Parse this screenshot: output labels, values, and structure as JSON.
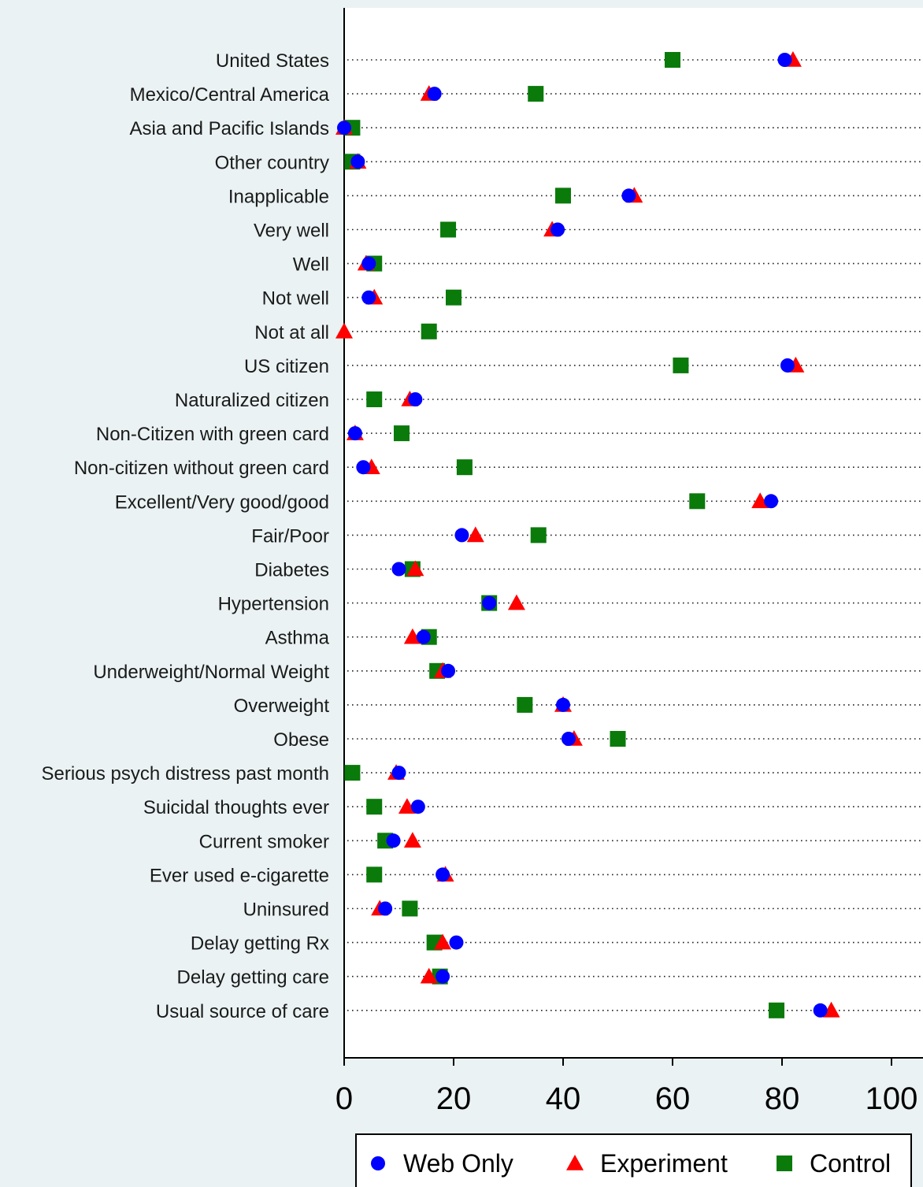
{
  "chart_data": {
    "type": "scatter",
    "orientation": "horizontal-dot-plot",
    "title": "",
    "xlabel": "",
    "ylabel": "",
    "xlim": [
      0,
      105
    ],
    "xticks": [
      0,
      20,
      40,
      60,
      80,
      100
    ],
    "grid": "dotted horizontal guide per category",
    "legend_position": "bottom",
    "categories": [
      "United States",
      "Mexico/Central America",
      "Asia and Pacific Islands",
      "Other country",
      "Inapplicable",
      "Very well",
      "Well",
      "Not well",
      "Not at all",
      "US citizen",
      "Naturalized citizen",
      "Non-Citizen with green card",
      "Non-citizen without green card",
      "Excellent/Very good/good",
      "Fair/Poor",
      "Diabetes",
      "Hypertension",
      "Asthma",
      "Underweight/Normal Weight",
      "Overweight",
      "Obese",
      "Serious psych distress past month",
      "Suicidal thoughts ever",
      "Current smoker",
      "Ever used e-cigarette",
      "Uninsured",
      "Delay getting Rx",
      "Delay getting care",
      "Usual source of care"
    ],
    "series": [
      {
        "name": "Control",
        "marker": "square",
        "color": "#0a7a0a",
        "values": [
          60,
          35,
          1.5,
          1.5,
          40,
          19,
          5.5,
          20,
          15.5,
          61.5,
          5.5,
          10.5,
          22,
          64.5,
          35.5,
          12.5,
          26.5,
          15.5,
          17,
          33,
          50,
          1.5,
          5.5,
          7.5,
          5.5,
          12,
          16.5,
          17.5,
          79
        ]
      },
      {
        "name": "Experiment",
        "marker": "triangle",
        "color": "#ff0000",
        "values": [
          82,
          15.5,
          0,
          2.5,
          53,
          38,
          4,
          5.5,
          0,
          82.5,
          12,
          2,
          5,
          76,
          24,
          13,
          31.5,
          12.5,
          18,
          40,
          42,
          9.5,
          11.5,
          12.5,
          18.5,
          6.5,
          18,
          15.5,
          89
        ]
      },
      {
        "name": "Web Only",
        "marker": "circle",
        "color": "#0000ff",
        "values": [
          80.5,
          16.5,
          0,
          2.5,
          52,
          39,
          4.5,
          4.5,
          null,
          81,
          13,
          2,
          3.5,
          78,
          21.5,
          10,
          26.5,
          14.5,
          19,
          40,
          41,
          10,
          13.5,
          9,
          18,
          7.5,
          20.5,
          18,
          87
        ]
      }
    ],
    "legend": [
      {
        "name": "Web Only",
        "marker": "circle",
        "color": "#0000ff"
      },
      {
        "name": "Experiment",
        "marker": "triangle",
        "color": "#ff0000"
      },
      {
        "name": "Control",
        "marker": "square",
        "color": "#0a7a0a"
      }
    ]
  }
}
